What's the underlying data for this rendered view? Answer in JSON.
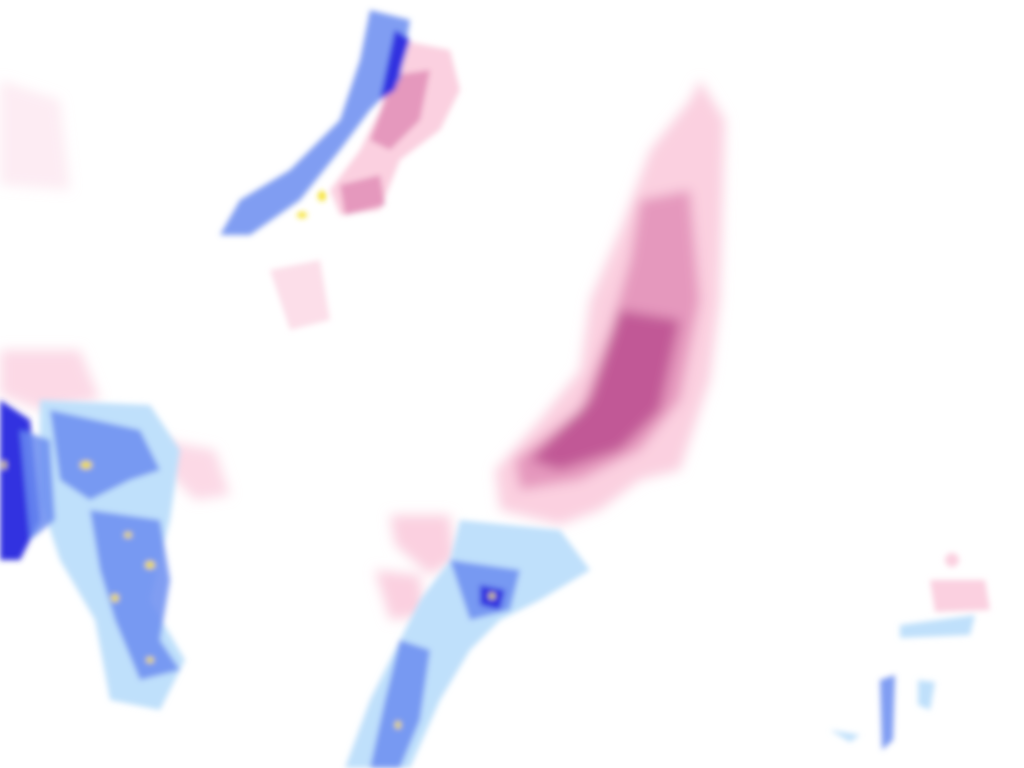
{
  "map": {
    "type": "precipitation-radar-overlay",
    "colors": {
      "background": "#ffffff",
      "snow_light": "#fbd0e0",
      "snow_moderate": "#e08ab4",
      "snow_heavy": "#b84a8c",
      "rain_light": "#bfe0fb",
      "rain_moderate": "#6a8cf0",
      "rain_heavy": "#3030e0",
      "rain_extreme": "#f5e020"
    },
    "regions": [
      {
        "name": "northern-band",
        "kind": "mixed"
      },
      {
        "name": "central-snow-band",
        "kind": "snow"
      },
      {
        "name": "western-rain-cluster",
        "kind": "rain"
      },
      {
        "name": "southern-rain-band",
        "kind": "rain"
      },
      {
        "name": "southeast-patch",
        "kind": "mixed"
      }
    ]
  }
}
